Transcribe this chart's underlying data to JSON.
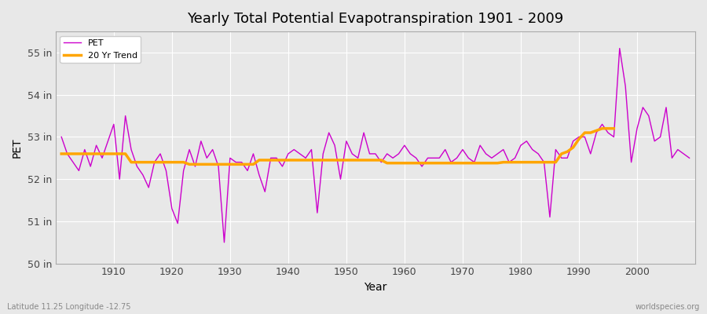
{
  "title": "Yearly Total Potential Evapotranspiration 1901 - 2009",
  "xlabel": "Year",
  "ylabel": "PET",
  "background_color": "#e8e8e8",
  "plot_bg_color": "#e8e8e8",
  "pet_color": "#cc00cc",
  "trend_color": "#ffa500",
  "ylim": [
    50,
    55.5
  ],
  "yticks": [
    50,
    51,
    52,
    53,
    54,
    55
  ],
  "ytick_labels": [
    "50 in",
    "51 in",
    "52 in",
    "53 in",
    "54 in",
    "55 in"
  ],
  "xlim": [
    1900,
    2010
  ],
  "xticks": [
    1910,
    1920,
    1930,
    1940,
    1950,
    1960,
    1970,
    1980,
    1990,
    2000
  ],
  "footer_left": "Latitude 11.25 Longitude -12.75",
  "footer_right": "worldspecies.org",
  "years": [
    1901,
    1902,
    1903,
    1904,
    1905,
    1906,
    1907,
    1908,
    1909,
    1910,
    1911,
    1912,
    1913,
    1914,
    1915,
    1916,
    1917,
    1918,
    1919,
    1920,
    1921,
    1922,
    1923,
    1924,
    1925,
    1926,
    1927,
    1928,
    1929,
    1930,
    1931,
    1932,
    1933,
    1934,
    1935,
    1936,
    1937,
    1938,
    1939,
    1940,
    1941,
    1942,
    1943,
    1944,
    1945,
    1946,
    1947,
    1948,
    1949,
    1950,
    1951,
    1952,
    1953,
    1954,
    1955,
    1956,
    1957,
    1958,
    1959,
    1960,
    1961,
    1962,
    1963,
    1964,
    1965,
    1966,
    1967,
    1968,
    1969,
    1970,
    1971,
    1972,
    1973,
    1974,
    1975,
    1976,
    1977,
    1978,
    1979,
    1980,
    1981,
    1982,
    1983,
    1984,
    1985,
    1986,
    1987,
    1988,
    1989,
    1990,
    1991,
    1992,
    1993,
    1994,
    1995,
    1996,
    1997,
    1998,
    1999,
    2000,
    2001,
    2002,
    2003,
    2004,
    2005,
    2006,
    2007,
    2008,
    2009
  ],
  "pet_values": [
    53.0,
    52.6,
    52.4,
    52.2,
    52.7,
    52.3,
    52.8,
    52.5,
    52.9,
    53.3,
    52.0,
    53.5,
    52.7,
    52.3,
    52.1,
    51.8,
    52.4,
    52.6,
    52.2,
    51.3,
    50.95,
    52.2,
    52.7,
    52.3,
    52.9,
    52.5,
    52.7,
    52.3,
    50.5,
    52.5,
    52.4,
    52.4,
    52.2,
    52.6,
    52.1,
    51.7,
    52.5,
    52.5,
    52.3,
    52.6,
    52.7,
    52.6,
    52.5,
    52.7,
    51.2,
    52.6,
    53.1,
    52.8,
    52.0,
    52.9,
    52.6,
    52.5,
    53.1,
    52.6,
    52.6,
    52.4,
    52.6,
    52.5,
    52.6,
    52.8,
    52.6,
    52.5,
    52.3,
    52.5,
    52.5,
    52.5,
    52.7,
    52.4,
    52.5,
    52.7,
    52.5,
    52.4,
    52.8,
    52.6,
    52.5,
    52.6,
    52.7,
    52.4,
    52.5,
    52.8,
    52.9,
    52.7,
    52.6,
    52.4,
    51.1,
    52.7,
    52.5,
    52.5,
    52.9,
    53.0,
    53.0,
    52.6,
    53.1,
    53.3,
    53.1,
    53.0,
    55.1,
    54.2,
    52.4,
    53.2,
    53.7,
    53.5,
    52.9,
    53.0,
    53.7,
    52.5,
    52.7,
    52.6,
    52.5
  ],
  "trend_years": [
    1901,
    1902,
    1903,
    1904,
    1905,
    1906,
    1907,
    1908,
    1909,
    1910,
    1911,
    1912,
    1913,
    1914,
    1915,
    1916,
    1917,
    1918,
    1919,
    1920,
    1921,
    1922,
    1923,
    1924,
    1925,
    1926,
    1927,
    1928,
    1929,
    1930,
    1931,
    1932,
    1933,
    1934,
    1935,
    1936,
    1937,
    1938,
    1939,
    1940,
    1941,
    1942,
    1943,
    1944,
    1945,
    1946,
    1947,
    1948,
    1949,
    1950,
    1951,
    1952,
    1953,
    1954,
    1955,
    1956,
    1957,
    1958,
    1959,
    1960,
    1961,
    1962,
    1963,
    1964,
    1965,
    1966,
    1967,
    1968,
    1969,
    1970,
    1971,
    1972,
    1973,
    1974,
    1975,
    1976,
    1977,
    1978,
    1979,
    1980,
    1981,
    1982,
    1983,
    1984,
    1985,
    1986,
    1987,
    1988,
    1989,
    1990,
    1991,
    1992,
    1993,
    1994,
    1995,
    1996
  ],
  "trend_values": [
    52.6,
    52.6,
    52.6,
    52.6,
    52.6,
    52.6,
    52.6,
    52.6,
    52.6,
    52.6,
    52.6,
    52.6,
    52.4,
    52.4,
    52.4,
    52.4,
    52.4,
    52.4,
    52.4,
    52.4,
    52.4,
    52.4,
    52.35,
    52.35,
    52.35,
    52.35,
    52.35,
    52.35,
    52.35,
    52.35,
    52.35,
    52.35,
    52.35,
    52.35,
    52.45,
    52.45,
    52.45,
    52.45,
    52.45,
    52.45,
    52.45,
    52.45,
    52.45,
    52.45,
    52.45,
    52.45,
    52.45,
    52.45,
    52.45,
    52.45,
    52.45,
    52.45,
    52.45,
    52.45,
    52.45,
    52.45,
    52.38,
    52.38,
    52.38,
    52.38,
    52.38,
    52.38,
    52.38,
    52.38,
    52.38,
    52.38,
    52.38,
    52.38,
    52.38,
    52.38,
    52.38,
    52.38,
    52.38,
    52.38,
    52.38,
    52.38,
    52.4,
    52.4,
    52.4,
    52.4,
    52.4,
    52.4,
    52.4,
    52.4,
    52.4,
    52.4,
    52.6,
    52.65,
    52.75,
    52.95,
    53.1,
    53.1,
    53.15,
    53.2,
    53.2,
    53.2
  ]
}
